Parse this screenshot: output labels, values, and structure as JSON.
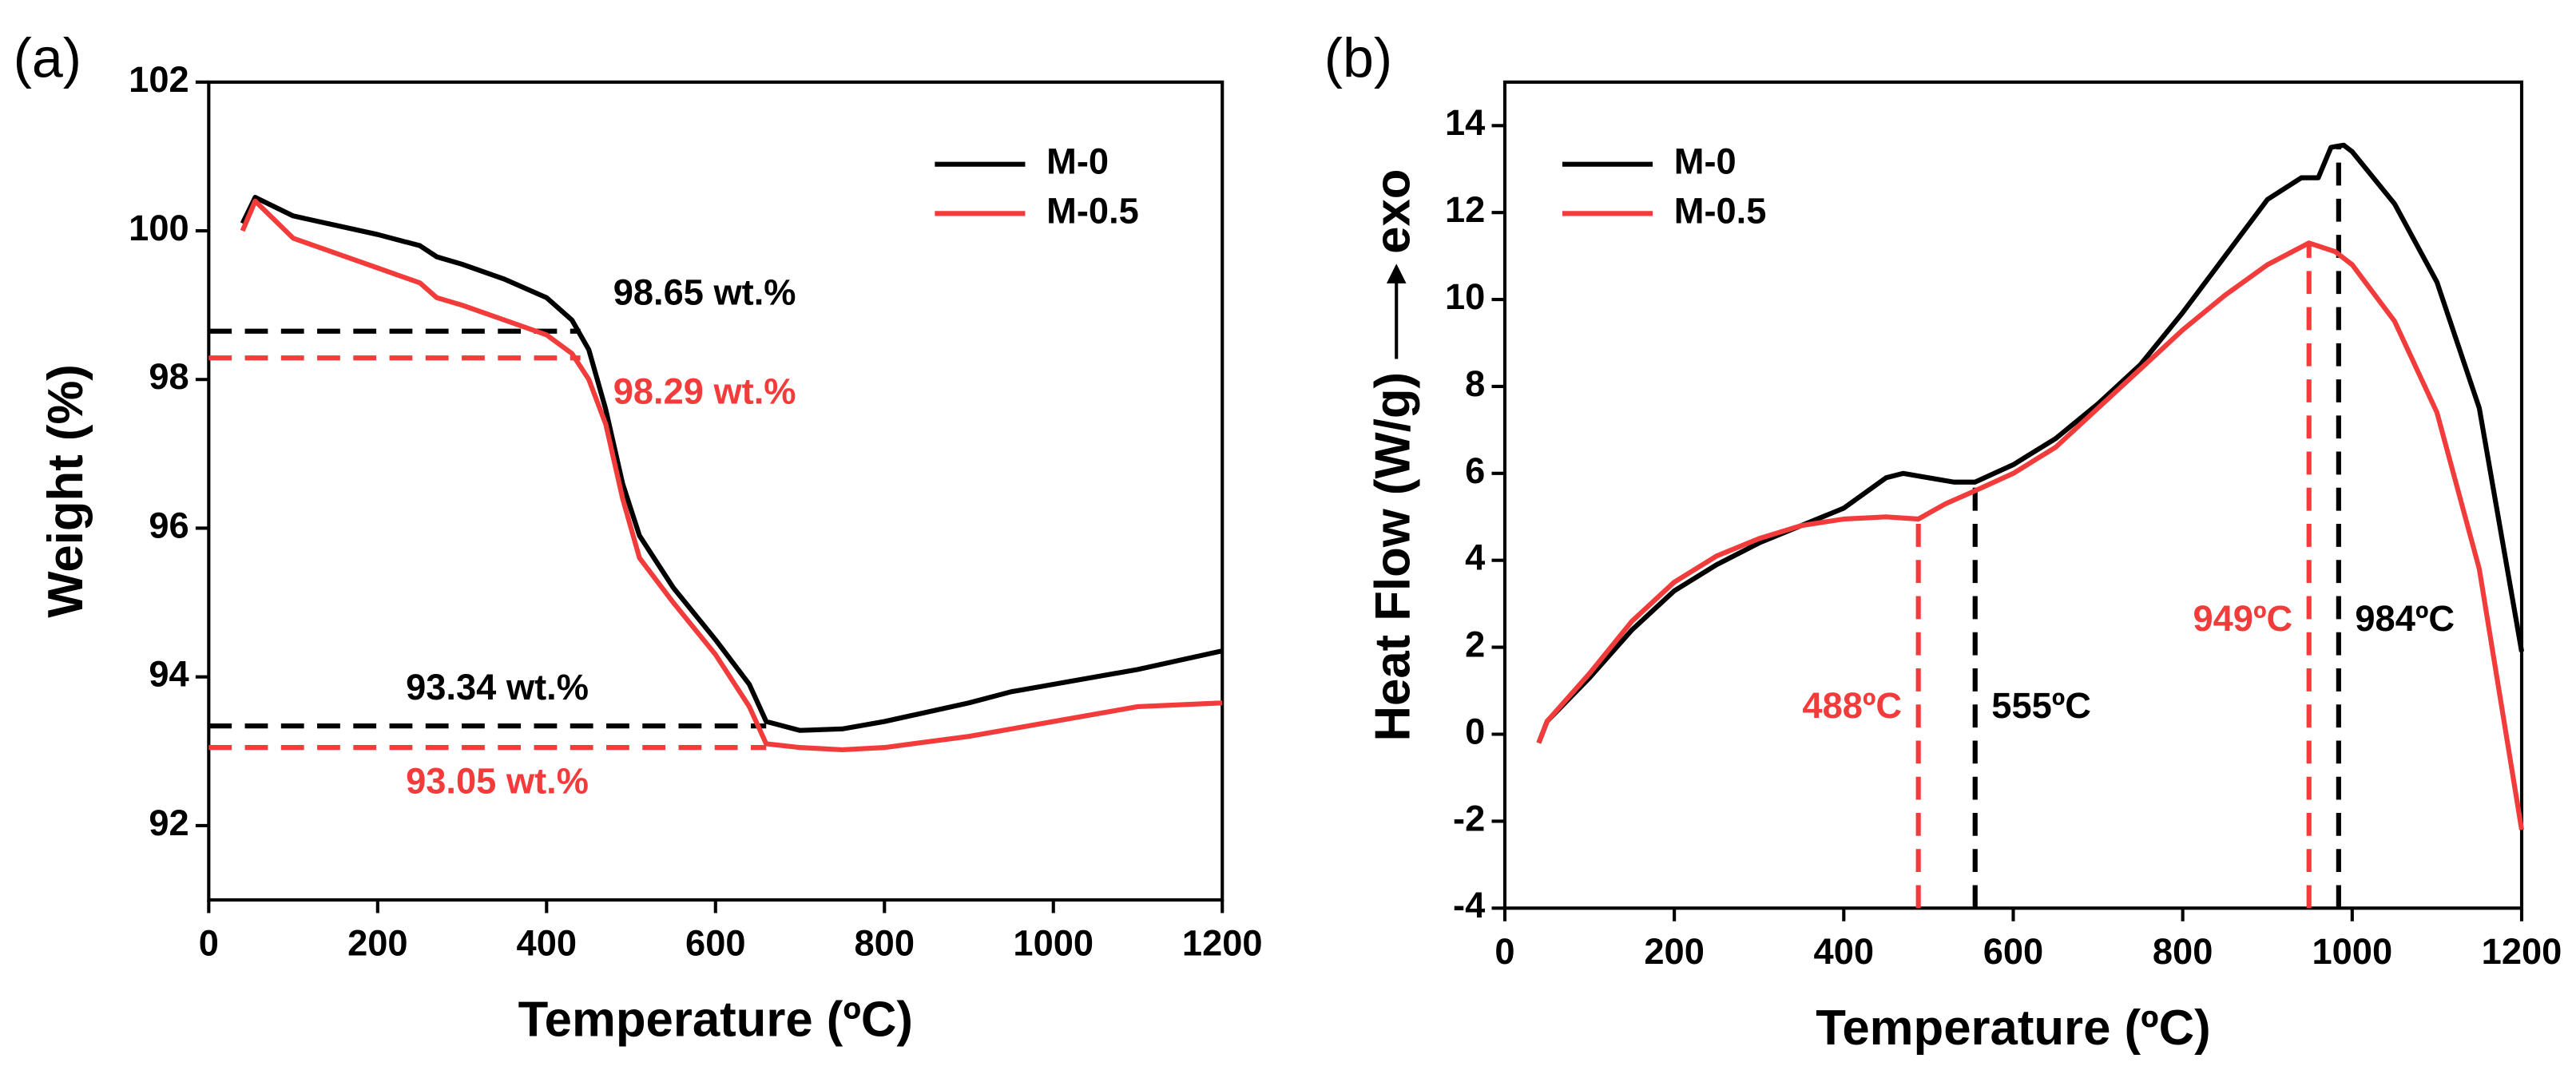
{
  "chart_data": [
    {
      "type": "line",
      "panel_label": "(a)",
      "xlabel": "Temperature (ºC)",
      "ylabel": "Weight (%)",
      "xlim": [
        0,
        1200
      ],
      "xticks": [
        0,
        200,
        400,
        600,
        800,
        1000,
        1200
      ],
      "ylim": [
        91,
        102
      ],
      "yticks": [
        92,
        94,
        96,
        98,
        100,
        102
      ],
      "legend": "upper right",
      "series": [
        {
          "name": "M-0",
          "color": "#000000",
          "x": [
            40,
            55,
            100,
            200,
            250,
            270,
            300,
            350,
            400,
            430,
            450,
            470,
            490,
            510,
            550,
            600,
            640,
            660,
            700,
            750,
            800,
            900,
            950,
            1000,
            1100,
            1200
          ],
          "values": [
            100.1,
            100.45,
            100.2,
            99.95,
            99.8,
            99.65,
            99.55,
            99.35,
            99.1,
            98.8,
            98.4,
            97.6,
            96.6,
            95.9,
            95.2,
            94.5,
            93.9,
            93.4,
            93.28,
            93.3,
            93.4,
            93.65,
            93.8,
            93.9,
            94.1,
            94.35
          ]
        },
        {
          "name": "M-0.5",
          "color": "#f23c3c",
          "x": [
            40,
            55,
            100,
            200,
            250,
            270,
            300,
            350,
            400,
            430,
            450,
            470,
            490,
            510,
            550,
            600,
            640,
            660,
            700,
            750,
            800,
            900,
            1000,
            1100,
            1200
          ],
          "values": [
            100.0,
            100.4,
            99.9,
            99.5,
            99.3,
            99.1,
            99.0,
            98.8,
            98.6,
            98.35,
            98.0,
            97.4,
            96.4,
            95.6,
            95.0,
            94.3,
            93.6,
            93.1,
            93.05,
            93.02,
            93.05,
            93.2,
            93.4,
            93.6,
            93.65
          ]
        }
      ],
      "reference_lines": [
        {
          "orientation": "horizontal",
          "y": 98.65,
          "x_end": 440,
          "label": "98.65 wt.%",
          "color": "#000000"
        },
        {
          "orientation": "horizontal",
          "y": 98.29,
          "x_end": 440,
          "label": "98.29 wt.%",
          "color": "#f23c3c"
        },
        {
          "orientation": "horizontal",
          "y": 93.34,
          "x_end": 660,
          "label": "93.34 wt.%",
          "color": "#000000"
        },
        {
          "orientation": "horizontal",
          "y": 93.05,
          "x_end": 660,
          "label": "93.05 wt.%",
          "color": "#f23c3c"
        }
      ]
    },
    {
      "type": "line",
      "panel_label": "(b)",
      "xlabel": "Temperature (ºC)",
      "ylabel": "Heat Flow (W/g)",
      "exo_label": "exo",
      "xlim": [
        0,
        1200
      ],
      "xticks": [
        0,
        200,
        400,
        600,
        800,
        1000,
        1200
      ],
      "ylim": [
        -4,
        15
      ],
      "yticks": [
        -4,
        -2,
        0,
        2,
        4,
        6,
        8,
        10,
        12,
        14
      ],
      "legend": "upper left",
      "series": [
        {
          "name": "M-0",
          "color": "#000000",
          "x": [
            40,
            50,
            100,
            150,
            200,
            250,
            300,
            350,
            400,
            450,
            470,
            500,
            530,
            555,
            600,
            650,
            700,
            750,
            800,
            850,
            900,
            940,
            960,
            975,
            990,
            1000,
            1050,
            1100,
            1150,
            1200
          ],
          "values": [
            -0.2,
            0.3,
            1.3,
            2.4,
            3.3,
            3.9,
            4.4,
            4.8,
            5.2,
            5.9,
            6.0,
            5.9,
            5.8,
            5.8,
            6.2,
            6.8,
            7.6,
            8.5,
            9.7,
            11.0,
            12.3,
            12.8,
            12.8,
            13.5,
            13.55,
            13.4,
            12.2,
            10.4,
            7.5,
            1.9
          ]
        },
        {
          "name": "M-0.5",
          "color": "#f23c3c",
          "x": [
            40,
            50,
            100,
            150,
            200,
            250,
            300,
            350,
            400,
            450,
            488,
            520,
            555,
            600,
            650,
            700,
            750,
            800,
            850,
            900,
            949,
            980,
            1000,
            1050,
            1100,
            1150,
            1200
          ],
          "values": [
            -0.2,
            0.3,
            1.4,
            2.6,
            3.5,
            4.1,
            4.5,
            4.8,
            4.95,
            5.0,
            4.95,
            5.3,
            5.6,
            6.0,
            6.6,
            7.5,
            8.4,
            9.3,
            10.1,
            10.8,
            11.3,
            11.1,
            10.8,
            9.5,
            7.4,
            3.8,
            -2.2
          ]
        }
      ],
      "reference_lines": [
        {
          "orientation": "vertical",
          "x": 488,
          "y_end": 4.95,
          "label": "488ºC",
          "color": "#f23c3c"
        },
        {
          "orientation": "vertical",
          "x": 555,
          "y_end": 5.8,
          "label": "555ºC",
          "color": "#000000"
        },
        {
          "orientation": "vertical",
          "x": 949,
          "y_end": 11.3,
          "label": "949ºC",
          "color": "#f23c3c"
        },
        {
          "orientation": "vertical",
          "x": 984,
          "y_end": 13.55,
          "label": "984ºC",
          "color": "#000000"
        }
      ]
    }
  ]
}
